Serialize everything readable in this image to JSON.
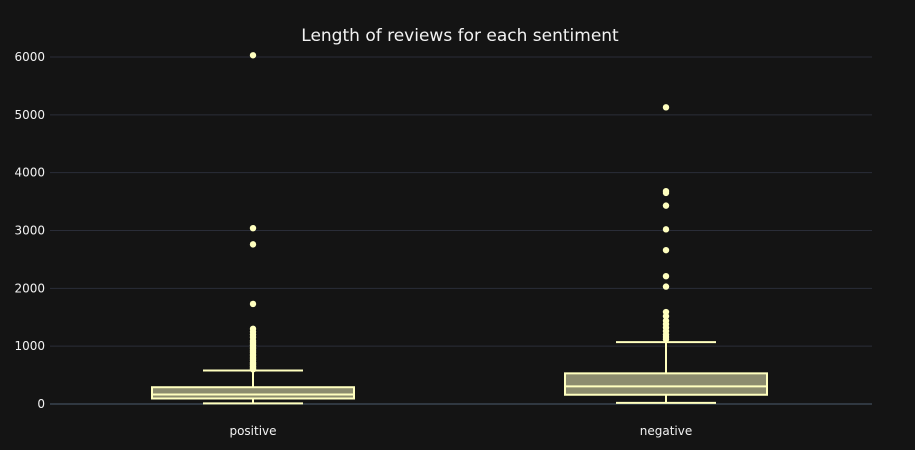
{
  "chart_data": {
    "type": "box",
    "title": "Length of reviews for each sentiment",
    "xlabel": "",
    "ylabel": "",
    "ylim": [
      -200,
      6300
    ],
    "yticks": [
      0,
      1000,
      2000,
      3000,
      4000,
      5000,
      6000
    ],
    "ytick_labels": [
      "0",
      "1000",
      "2000",
      "3000",
      "4000",
      "5000",
      "6000"
    ],
    "grid": true,
    "box_color": "#ffffbf",
    "box_fill": "#8c8c6e",
    "categories": [
      "positive",
      "negative"
    ],
    "boxes": [
      {
        "category": "positive",
        "min": 10,
        "q1": 95,
        "median": 165,
        "q3": 290,
        "max": 580,
        "outliers": [
          600,
          620,
          640,
          660,
          680,
          700,
          720,
          750,
          780,
          800,
          830,
          860,
          890,
          920,
          950,
          980,
          1010,
          1040,
          1070,
          1100,
          1150,
          1200,
          1250,
          1300,
          1730,
          2760,
          3040,
          6030
        ]
      },
      {
        "category": "negative",
        "min": 20,
        "q1": 160,
        "median": 305,
        "q3": 530,
        "max": 1070,
        "outliers": [
          1120,
          1160,
          1200,
          1260,
          1320,
          1380,
          1440,
          1520,
          1590,
          2030,
          2210,
          2660,
          3020,
          3430,
          3650,
          3680,
          5130
        ]
      }
    ]
  }
}
